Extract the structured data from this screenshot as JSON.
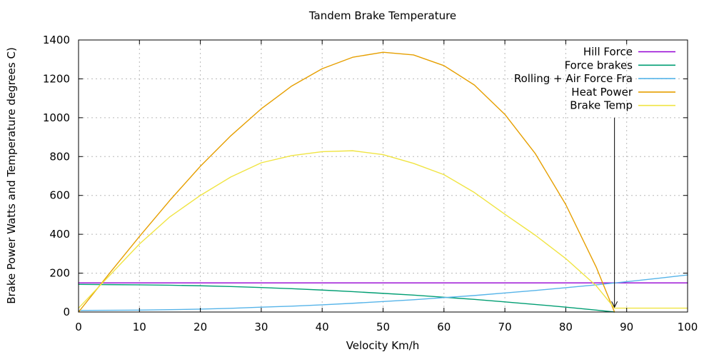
{
  "chart_data": {
    "type": "line",
    "title": "Tandem Brake Temperature",
    "xlabel": "Velocity Km/h",
    "ylabel": "Brake Power Watts and Temperature degrees C)",
    "xlim": [
      0,
      100
    ],
    "ylim": [
      0,
      1400
    ],
    "x_ticks": [
      0,
      10,
      20,
      30,
      40,
      50,
      60,
      70,
      80,
      90,
      100
    ],
    "y_ticks": [
      0,
      200,
      400,
      600,
      800,
      1000,
      1200,
      1400
    ],
    "grid": true,
    "legend_position": "top-right-inside",
    "background_color": "#ffffff",
    "axis_color": "#000000",
    "grid_color": "#b8b8b8",
    "series": [
      {
        "name": "Hill Force",
        "color": "#9400D3",
        "x": [
          0,
          100
        ],
        "y": [
          150,
          150
        ]
      },
      {
        "name": "Force brakes",
        "color": "#009E73",
        "x": [
          0,
          5,
          10,
          15,
          20,
          25,
          30,
          35,
          40,
          45,
          50,
          55,
          60,
          65,
          70,
          75,
          80,
          85,
          88
        ],
        "y": [
          142,
          141,
          140,
          138,
          135,
          131,
          126,
          120,
          113,
          105,
          96,
          87,
          76,
          65,
          52,
          39,
          25,
          10,
          0
        ]
      },
      {
        "name": "Rolling + Air Force Fra",
        "color": "#56B4E9",
        "x": [
          0,
          5,
          10,
          15,
          20,
          25,
          30,
          35,
          40,
          45,
          50,
          55,
          60,
          65,
          70,
          75,
          80,
          85,
          90,
          95,
          100
        ],
        "y": [
          8,
          9,
          10,
          12,
          15,
          19,
          25,
          30,
          37,
          45,
          54,
          63,
          74,
          85,
          98,
          111,
          125,
          140,
          156,
          173,
          191
        ]
      },
      {
        "name": "Heat Power",
        "color": "#E69F00",
        "x": [
          0,
          5,
          10,
          15,
          20,
          25,
          30,
          35,
          40,
          45,
          50,
          55,
          60,
          65,
          70,
          75,
          80,
          85,
          88
        ],
        "y": [
          0,
          196,
          389,
          575,
          750,
          907,
          1046,
          1163,
          1252,
          1311,
          1337,
          1323,
          1268,
          1168,
          1017,
          815,
          553,
          231,
          0
        ]
      },
      {
        "name": "Brake Temp",
        "color": "#F0E442",
        "x": [
          0,
          5,
          10,
          15,
          20,
          25,
          30,
          35,
          40,
          45,
          50,
          55,
          60,
          65,
          70,
          75,
          80,
          85,
          88,
          90,
          95,
          100
        ],
        "y": [
          20,
          185,
          350,
          490,
          600,
          695,
          768,
          805,
          825,
          830,
          810,
          765,
          707,
          615,
          503,
          395,
          275,
          135,
          20,
          20,
          20,
          20
        ]
      }
    ],
    "annotation": {
      "type": "arrow",
      "x": 88,
      "y_from": 1000,
      "y_to": 25,
      "color": "#000000"
    }
  }
}
